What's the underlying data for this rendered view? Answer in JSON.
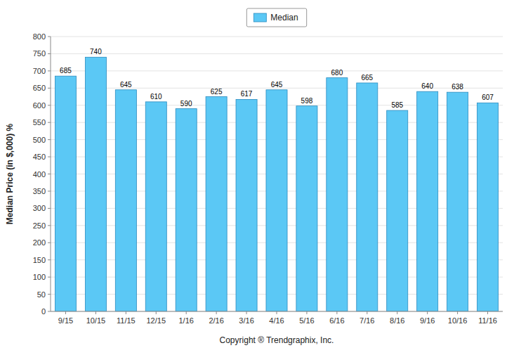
{
  "chart_data": {
    "type": "bar",
    "categories": [
      "9/15",
      "10/15",
      "11/15",
      "12/15",
      "1/16",
      "2/16",
      "3/16",
      "4/16",
      "5/16",
      "6/16",
      "7/16",
      "8/16",
      "9/16",
      "10/16",
      "11/16"
    ],
    "series": [
      {
        "name": "Median",
        "color": "#5BC8F5",
        "values": [
          685,
          740,
          645,
          610,
          590,
          625,
          617,
          645,
          598,
          680,
          665,
          585,
          640,
          638,
          607
        ]
      }
    ],
    "ylim": [
      0,
      800
    ],
    "yticks": [
      0,
      50,
      100,
      150,
      200,
      250,
      300,
      350,
      400,
      450,
      500,
      550,
      600,
      650,
      700,
      750,
      800
    ],
    "ylabel": "Median Price (in $,000) %",
    "xlabel": "Copyright ® Trendgraphix, Inc.",
    "grid": true,
    "legend": "top",
    "data_labels": true
  }
}
